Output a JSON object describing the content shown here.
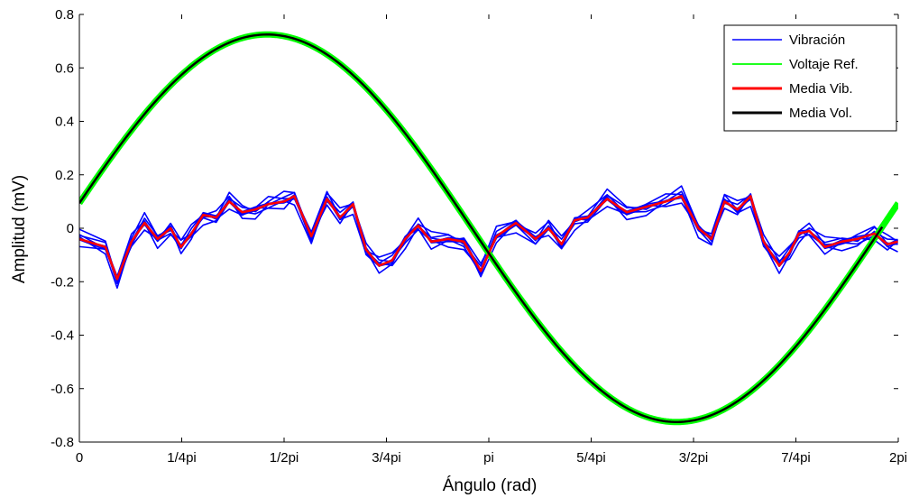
{
  "chart_data": {
    "type": "line",
    "xlabel": "Ángulo (rad)",
    "ylabel": "Amplitud (mV)",
    "xlim": [
      0,
      6.2832
    ],
    "ylim": [
      -0.8,
      0.8
    ],
    "grid": false,
    "legend_position": "top-right",
    "x_ticks": [
      {
        "value": 0,
        "label": "0"
      },
      {
        "value": 0.7854,
        "label": "1/4pi"
      },
      {
        "value": 1.5708,
        "label": "1/2pi"
      },
      {
        "value": 2.3562,
        "label": "3/4pi"
      },
      {
        "value": 3.1416,
        "label": "pi"
      },
      {
        "value": 3.927,
        "label": "5/4pi"
      },
      {
        "value": 4.7124,
        "label": "3/2pi"
      },
      {
        "value": 5.4978,
        "label": "7/4pi"
      },
      {
        "value": 6.2832,
        "label": "2pi"
      }
    ],
    "y_ticks": [
      {
        "value": 0.8,
        "label": "0.8"
      },
      {
        "value": 0.6,
        "label": "0.6"
      },
      {
        "value": 0.4,
        "label": "0.4"
      },
      {
        "value": 0.2,
        "label": "0.2"
      },
      {
        "value": 0,
        "label": "0"
      },
      {
        "value": -0.2,
        "label": "-0.2"
      },
      {
        "value": -0.4,
        "label": "-0.4"
      },
      {
        "value": -0.6,
        "label": "-0.6"
      },
      {
        "value": -0.8,
        "label": "-0.8"
      }
    ],
    "series": [
      {
        "name": "Vibración",
        "color": "#0000ff",
        "style": "band",
        "x": [
          0,
          0.2,
          0.29,
          0.4,
          0.5,
          0.6,
          0.7,
          0.78,
          0.86,
          0.95,
          1.05,
          1.15,
          1.25,
          1.35,
          1.45,
          1.57,
          1.65,
          1.78,
          1.9,
          2.0,
          2.1,
          2.2,
          2.3,
          2.4,
          2.5,
          2.6,
          2.7,
          2.83,
          2.95,
          3.08,
          3.2,
          3.35,
          3.5,
          3.6,
          3.7,
          3.8,
          3.9,
          4.05,
          4.2,
          4.35,
          4.5,
          4.62,
          4.75,
          4.85,
          4.95,
          5.05,
          5.15,
          5.25,
          5.37,
          5.45,
          5.52,
          5.6,
          5.72,
          5.85,
          5.97,
          6.1,
          6.2,
          6.28
        ],
        "values": [
          -0.04,
          -0.07,
          -0.19,
          -0.05,
          0.02,
          -0.04,
          0.0,
          -0.07,
          -0.02,
          0.05,
          0.04,
          0.1,
          0.06,
          0.07,
          0.09,
          0.1,
          0.12,
          -0.03,
          0.11,
          0.04,
          0.09,
          -0.08,
          -0.14,
          -0.12,
          -0.04,
          0.01,
          -0.05,
          -0.04,
          -0.05,
          -0.16,
          -0.03,
          0.02,
          -0.04,
          0.0,
          -0.06,
          0.03,
          0.04,
          0.11,
          0.06,
          0.08,
          0.1,
          0.12,
          0.0,
          -0.04,
          0.1,
          0.07,
          0.12,
          -0.05,
          -0.14,
          -0.09,
          -0.02,
          -0.01,
          -0.07,
          -0.05,
          -0.04,
          -0.02,
          -0.06,
          -0.05
        ]
      },
      {
        "name": "Voltaje Ref.",
        "color": "#00ff00",
        "style": "thick",
        "function": "0.725*sin(x+0.13)"
      },
      {
        "name": "Media Vib.",
        "color": "#ff0000",
        "style": "line",
        "x": [
          0,
          0.2,
          0.29,
          0.4,
          0.5,
          0.6,
          0.7,
          0.78,
          0.86,
          0.95,
          1.05,
          1.15,
          1.25,
          1.35,
          1.45,
          1.57,
          1.65,
          1.78,
          1.9,
          2.0,
          2.1,
          2.2,
          2.3,
          2.4,
          2.5,
          2.6,
          2.7,
          2.83,
          2.95,
          3.08,
          3.2,
          3.35,
          3.5,
          3.6,
          3.7,
          3.8,
          3.9,
          4.05,
          4.2,
          4.35,
          4.5,
          4.62,
          4.75,
          4.85,
          4.95,
          5.05,
          5.15,
          5.25,
          5.37,
          5.45,
          5.52,
          5.6,
          5.72,
          5.85,
          5.97,
          6.1,
          6.2,
          6.28
        ],
        "values": [
          -0.04,
          -0.07,
          -0.19,
          -0.05,
          0.02,
          -0.04,
          0.0,
          -0.07,
          -0.02,
          0.05,
          0.04,
          0.1,
          0.06,
          0.07,
          0.09,
          0.1,
          0.12,
          -0.03,
          0.11,
          0.04,
          0.09,
          -0.08,
          -0.14,
          -0.12,
          -0.04,
          0.01,
          -0.05,
          -0.04,
          -0.05,
          -0.16,
          -0.03,
          0.02,
          -0.04,
          0.0,
          -0.06,
          0.03,
          0.04,
          0.11,
          0.06,
          0.08,
          0.1,
          0.12,
          0.0,
          -0.04,
          0.1,
          0.07,
          0.12,
          -0.05,
          -0.14,
          -0.09,
          -0.02,
          -0.01,
          -0.07,
          -0.05,
          -0.04,
          -0.02,
          -0.06,
          -0.05
        ]
      },
      {
        "name": "Media Vol.",
        "color": "#000000",
        "style": "line",
        "function": "0.725*sin(x+0.13)",
        "x_end": 6.16
      }
    ]
  }
}
